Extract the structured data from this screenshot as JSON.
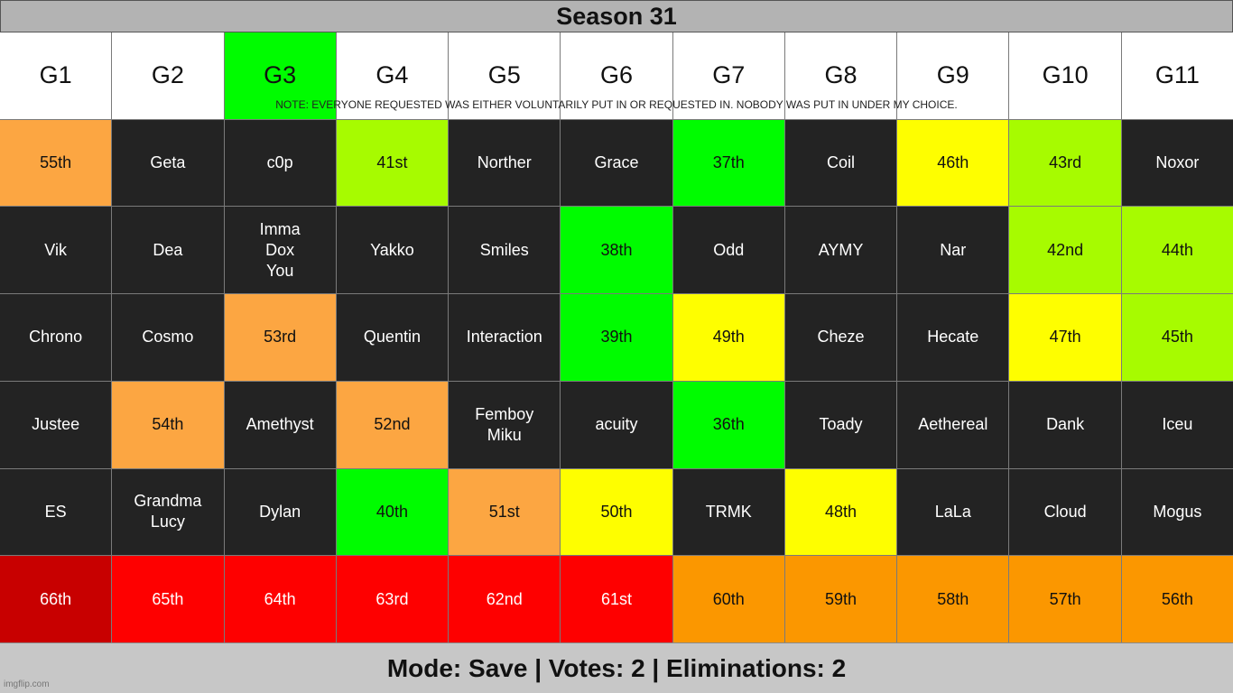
{
  "title": "Season 31",
  "note": "NOTE: EVERYONE REQUESTED WAS EITHER VOLUNTARILY PUT IN OR REQUESTED IN. NOBODY WAS PUT IN UNDER MY CHOICE.",
  "headers": [
    {
      "label": "G1",
      "color": "#ffffff"
    },
    {
      "label": "G2",
      "color": "#ffffff"
    },
    {
      "label": "G3",
      "color": "#00fc00"
    },
    {
      "label": "G4",
      "color": "#ffffff"
    },
    {
      "label": "G5",
      "color": "#ffffff"
    },
    {
      "label": "G6",
      "color": "#ffffff"
    },
    {
      "label": "G7",
      "color": "#ffffff"
    },
    {
      "label": "G8",
      "color": "#ffffff"
    },
    {
      "label": "G9",
      "color": "#ffffff"
    },
    {
      "label": "G10",
      "color": "#ffffff"
    },
    {
      "label": "G11",
      "color": "#ffffff"
    }
  ],
  "rows": [
    [
      {
        "text": "55th",
        "status": "orange"
      },
      {
        "text": "Geta",
        "status": "black"
      },
      {
        "text": "c0p",
        "status": "black"
      },
      {
        "text": "41st",
        "status": "lime"
      },
      {
        "text": "Norther",
        "status": "black"
      },
      {
        "text": "Grace",
        "status": "black"
      },
      {
        "text": "37th",
        "status": "green"
      },
      {
        "text": "Coil",
        "status": "black"
      },
      {
        "text": "46th",
        "status": "yellow"
      },
      {
        "text": "43rd",
        "status": "lime"
      },
      {
        "text": "Noxor",
        "status": "black"
      }
    ],
    [
      {
        "text": "Vik",
        "status": "black"
      },
      {
        "text": "Dea",
        "status": "black"
      },
      {
        "text": "Imma\nDox\nYou",
        "status": "black"
      },
      {
        "text": "Yakko",
        "status": "black"
      },
      {
        "text": "Smiles",
        "status": "black"
      },
      {
        "text": "38th",
        "status": "green"
      },
      {
        "text": "Odd",
        "status": "black"
      },
      {
        "text": "AYMY",
        "status": "black"
      },
      {
        "text": "Nar",
        "status": "black"
      },
      {
        "text": "42nd",
        "status": "lime"
      },
      {
        "text": "44th",
        "status": "lime"
      }
    ],
    [
      {
        "text": "Chrono",
        "status": "black"
      },
      {
        "text": "Cosmo",
        "status": "black"
      },
      {
        "text": "53rd",
        "status": "orange"
      },
      {
        "text": "Quentin",
        "status": "black"
      },
      {
        "text": "Interaction",
        "status": "black"
      },
      {
        "text": "39th",
        "status": "green"
      },
      {
        "text": "49th",
        "status": "yellow"
      },
      {
        "text": "Cheze",
        "status": "black"
      },
      {
        "text": "Hecate",
        "status": "black"
      },
      {
        "text": "47th",
        "status": "yellow"
      },
      {
        "text": "45th",
        "status": "lime"
      }
    ],
    [
      {
        "text": "Justee",
        "status": "black"
      },
      {
        "text": "54th",
        "status": "orange"
      },
      {
        "text": "Amethyst",
        "status": "black"
      },
      {
        "text": "52nd",
        "status": "orange"
      },
      {
        "text": "Femboy\nMiku",
        "status": "black"
      },
      {
        "text": "acuity",
        "status": "black"
      },
      {
        "text": "36th",
        "status": "green"
      },
      {
        "text": "Toady",
        "status": "black"
      },
      {
        "text": "Aethereal",
        "status": "black"
      },
      {
        "text": "Dank",
        "status": "black"
      },
      {
        "text": "Iceu",
        "status": "black"
      }
    ],
    [
      {
        "text": "ES",
        "status": "black"
      },
      {
        "text": "Grandma\nLucy",
        "status": "black"
      },
      {
        "text": "Dylan",
        "status": "black"
      },
      {
        "text": "40th",
        "status": "green"
      },
      {
        "text": "51st",
        "status": "orange"
      },
      {
        "text": "50th",
        "status": "yellow"
      },
      {
        "text": "TRMK",
        "status": "black"
      },
      {
        "text": "48th",
        "status": "yellow"
      },
      {
        "text": "LaLa",
        "status": "black"
      },
      {
        "text": "Cloud",
        "status": "black"
      },
      {
        "text": "Mogus",
        "status": "black"
      }
    ],
    [
      {
        "text": "66th",
        "status": "darkred"
      },
      {
        "text": "65th",
        "status": "red"
      },
      {
        "text": "64th",
        "status": "red"
      },
      {
        "text": "63rd",
        "status": "red"
      },
      {
        "text": "62nd",
        "status": "red"
      },
      {
        "text": "61st",
        "status": "red"
      },
      {
        "text": "60th",
        "status": "amber"
      },
      {
        "text": "59th",
        "status": "amber"
      },
      {
        "text": "58th",
        "status": "amber"
      },
      {
        "text": "57th",
        "status": "amber"
      },
      {
        "text": "56th",
        "status": "amber"
      }
    ]
  ],
  "footer": "Mode: Save | Votes: 2 | Eliminations: 2",
  "watermark": "imgflip.com"
}
